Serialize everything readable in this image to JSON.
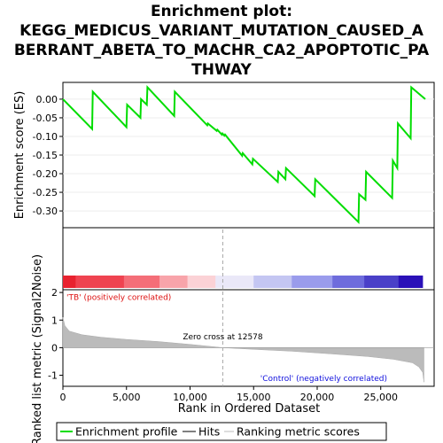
{
  "chart_data": {
    "type": "line",
    "title_lines": [
      "Enrichment plot:",
      "KEGG_MEDICUS_VARIANT_MUTATION_CAUSED_A",
      "BERRANT_ABETA_TO_MACHR_CA2_APOPTOTIC_PA",
      "THWAY"
    ],
    "top_panel": {
      "ylabel": "Enrichment score (ES)",
      "ylim": [
        -0.345,
        0.045
      ],
      "xlim": [
        0,
        29200
      ],
      "yticks": [
        "0.00",
        "-0.05",
        "-0.10",
        "-0.15",
        "-0.20",
        "-0.25",
        "-0.30"
      ],
      "ytick_values": [
        0.0,
        -0.05,
        -0.1,
        -0.15,
        -0.2,
        -0.25,
        -0.3
      ],
      "enrichment_profile": [
        [
          0,
          0.0
        ],
        [
          2300,
          -0.08
        ],
        [
          2350,
          0.02
        ],
        [
          5000,
          -0.075
        ],
        [
          5050,
          -0.015
        ],
        [
          6100,
          -0.05
        ],
        [
          6150,
          0.0
        ],
        [
          6600,
          -0.015
        ],
        [
          6650,
          0.032
        ],
        [
          8750,
          -0.045
        ],
        [
          8800,
          0.02
        ],
        [
          11350,
          -0.07
        ],
        [
          11400,
          -0.065
        ],
        [
          12100,
          -0.085
        ],
        [
          12150,
          -0.082
        ],
        [
          12500,
          -0.095
        ],
        [
          12550,
          -0.092
        ],
        [
          12700,
          -0.098
        ],
        [
          12750,
          -0.095
        ],
        [
          14100,
          -0.152
        ],
        [
          14150,
          -0.145
        ],
        [
          14900,
          -0.175
        ],
        [
          14950,
          -0.16
        ],
        [
          16900,
          -0.222
        ],
        [
          16950,
          -0.195
        ],
        [
          17500,
          -0.215
        ],
        [
          17550,
          -0.185
        ],
        [
          19800,
          -0.26
        ],
        [
          19850,
          -0.215
        ],
        [
          23250,
          -0.33
        ],
        [
          23300,
          -0.255
        ],
        [
          23800,
          -0.27
        ],
        [
          23850,
          -0.195
        ],
        [
          25900,
          -0.265
        ],
        [
          25950,
          -0.165
        ],
        [
          26300,
          -0.185
        ],
        [
          26350,
          -0.065
        ],
        [
          27350,
          -0.105
        ],
        [
          27400,
          0.032
        ],
        [
          28500,
          0.0
        ]
      ],
      "hits": [
        2350,
        5050,
        6150,
        6650,
        8800,
        11400,
        12150,
        12550,
        12750,
        14150,
        14950,
        16950,
        17550,
        19850,
        23300,
        23850,
        25950,
        26350,
        27400
      ]
    },
    "color_bar": {
      "colors": [
        "#e8222f",
        "#ef4350",
        "#f46e78",
        "#f8a4aa",
        "#fbd2d6",
        "#eae8f8",
        "#c4c6f2",
        "#9a9cec",
        "#6e6cdc",
        "#4a40c8",
        "#2a10b8"
      ],
      "boundaries": [
        0,
        1000,
        4800,
        7600,
        9800,
        12000,
        15000,
        18000,
        21200,
        23700,
        26400,
        28300
      ]
    },
    "bottom_panel": {
      "ylabel": "Ranked list metric (Signal2Noise)",
      "xlabel": "Rank in Ordered Dataset",
      "ylim": [
        -1.4,
        2.1
      ],
      "yticks": [
        "2",
        "1",
        "0",
        "-1"
      ],
      "ytick_values": [
        2,
        1,
        0,
        -1
      ],
      "xticks": [
        "0",
        "5,000",
        "10,000",
        "15,000",
        "20,000",
        "25,000"
      ],
      "xtick_values": [
        0,
        5000,
        10000,
        15000,
        20000,
        25000
      ],
      "zero_cross_label": "Zero cross at 12578",
      "zero_cross": 12578,
      "pos_label": "'TB' (positively correlated)",
      "neg_label": "'Control' (negatively correlated)",
      "metric_curve": [
        [
          0,
          1.1
        ],
        [
          150,
          0.8
        ],
        [
          500,
          0.6
        ],
        [
          1500,
          0.47
        ],
        [
          3000,
          0.38
        ],
        [
          5000,
          0.3
        ],
        [
          7500,
          0.22
        ],
        [
          10000,
          0.12
        ],
        [
          12578,
          0.0
        ],
        [
          15000,
          -0.06
        ],
        [
          18000,
          -0.13
        ],
        [
          21000,
          -0.22
        ],
        [
          24000,
          -0.32
        ],
        [
          26000,
          -0.42
        ],
        [
          27500,
          -0.55
        ],
        [
          28000,
          -0.7
        ],
        [
          28300,
          -0.9
        ],
        [
          28400,
          -1.25
        ]
      ]
    },
    "legend": [
      {
        "label": "Enrichment profile",
        "color": "#00dd00"
      },
      {
        "label": "Hits",
        "color": "#000000"
      },
      {
        "label": "Ranking metric scores",
        "color": "#bbbbbb"
      }
    ]
  }
}
